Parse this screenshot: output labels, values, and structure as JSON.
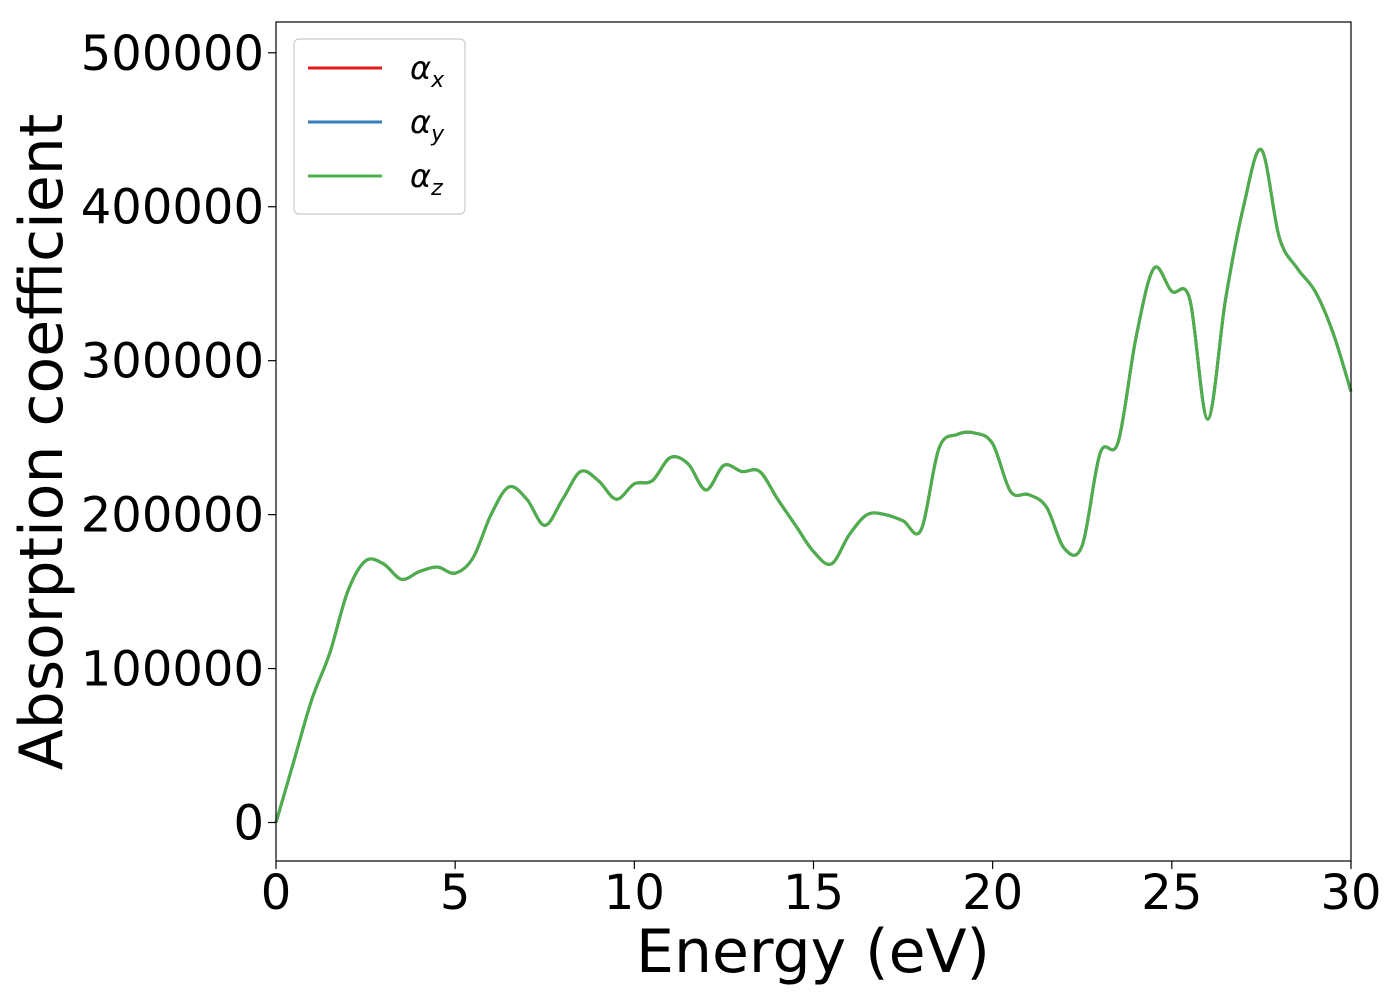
{
  "chart_data": {
    "type": "line",
    "title": "",
    "xlabel": "Energy (eV)",
    "ylabel": "Absorption coefficient",
    "xlim": [
      0,
      30
    ],
    "ylim": [
      -25000,
      520000
    ],
    "xticks": [
      0,
      5,
      10,
      15,
      20,
      25,
      30
    ],
    "xtick_labels": [
      "0",
      "5",
      "10",
      "15",
      "20",
      "25",
      "30"
    ],
    "yticks": [
      0,
      100000,
      200000,
      300000,
      400000,
      500000
    ],
    "ytick_labels": [
      "0",
      "100000",
      "200000",
      "300000",
      "400000",
      "500000"
    ],
    "grid": false,
    "legend_position": "top-left",
    "colors": {
      "alpha_x": "#e41a1c",
      "alpha_y": "#377eb8",
      "alpha_z": "#4daf4a"
    },
    "x": [
      0,
      0.5,
      1.0,
      1.5,
      2.0,
      2.5,
      3.0,
      3.5,
      4.0,
      4.5,
      5.0,
      5.5,
      6.0,
      6.5,
      7.0,
      7.5,
      8.0,
      8.5,
      9.0,
      9.5,
      10.0,
      10.5,
      11.0,
      11.5,
      12.0,
      12.5,
      13.0,
      13.5,
      14.0,
      14.5,
      15.0,
      15.5,
      16.0,
      16.5,
      17.0,
      17.5,
      18.0,
      18.5,
      19.0,
      19.5,
      20.0,
      20.5,
      21.0,
      21.5,
      22.0,
      22.5,
      23.0,
      23.5,
      24.0,
      24.5,
      25.0,
      25.5,
      26.0,
      26.5,
      27.0,
      27.5,
      28.0,
      28.5,
      29.0,
      29.5,
      30.0
    ],
    "series": [
      {
        "name": "α_x",
        "legend_main": "α",
        "legend_sub": "x",
        "color_key": "alpha_x",
        "values": [
          0,
          40000,
          80000,
          110000,
          150000,
          170000,
          168000,
          158000,
          163000,
          166000,
          162000,
          172000,
          200000,
          218000,
          210000,
          193000,
          210000,
          228000,
          222000,
          210000,
          220000,
          222000,
          237000,
          233000,
          216000,
          232000,
          228000,
          228000,
          210000,
          193000,
          176000,
          168000,
          187000,
          200000,
          200000,
          196000,
          190000,
          243000,
          252000,
          253000,
          246000,
          215000,
          213000,
          205000,
          178000,
          180000,
          240000,
          247000,
          315000,
          360000,
          345000,
          340000,
          262000,
          340000,
          400000,
          437000,
          380000,
          360000,
          345000,
          318000,
          280000
        ]
      },
      {
        "name": "α_y",
        "legend_main": "α",
        "legend_sub": "y",
        "color_key": "alpha_y",
        "values": [
          0,
          40000,
          80000,
          110000,
          150000,
          170000,
          168000,
          158000,
          163000,
          166000,
          162000,
          172000,
          200000,
          218000,
          210000,
          193000,
          210000,
          228000,
          222000,
          210000,
          220000,
          222000,
          237000,
          233000,
          216000,
          232000,
          228000,
          228000,
          210000,
          193000,
          176000,
          168000,
          187000,
          200000,
          200000,
          196000,
          190000,
          243000,
          252000,
          253000,
          246000,
          215000,
          213000,
          205000,
          178000,
          180000,
          240000,
          247000,
          315000,
          360000,
          345000,
          340000,
          262000,
          340000,
          400000,
          437000,
          380000,
          360000,
          345000,
          318000,
          280000
        ]
      },
      {
        "name": "α_z",
        "legend_main": "α",
        "legend_sub": "z",
        "color_key": "alpha_z",
        "values": [
          0,
          40000,
          80000,
          110000,
          150000,
          170000,
          168000,
          158000,
          163000,
          166000,
          162000,
          172000,
          200000,
          218000,
          210000,
          193000,
          210000,
          228000,
          222000,
          210000,
          220000,
          222000,
          237000,
          233000,
          216000,
          232000,
          228000,
          228000,
          210000,
          193000,
          176000,
          168000,
          187000,
          200000,
          200000,
          196000,
          190000,
          243000,
          252000,
          253000,
          246000,
          215000,
          213000,
          205000,
          178000,
          180000,
          240000,
          247000,
          315000,
          360000,
          345000,
          340000,
          262000,
          340000,
          400000,
          437000,
          380000,
          360000,
          345000,
          318000,
          280000
        ]
      }
    ]
  }
}
